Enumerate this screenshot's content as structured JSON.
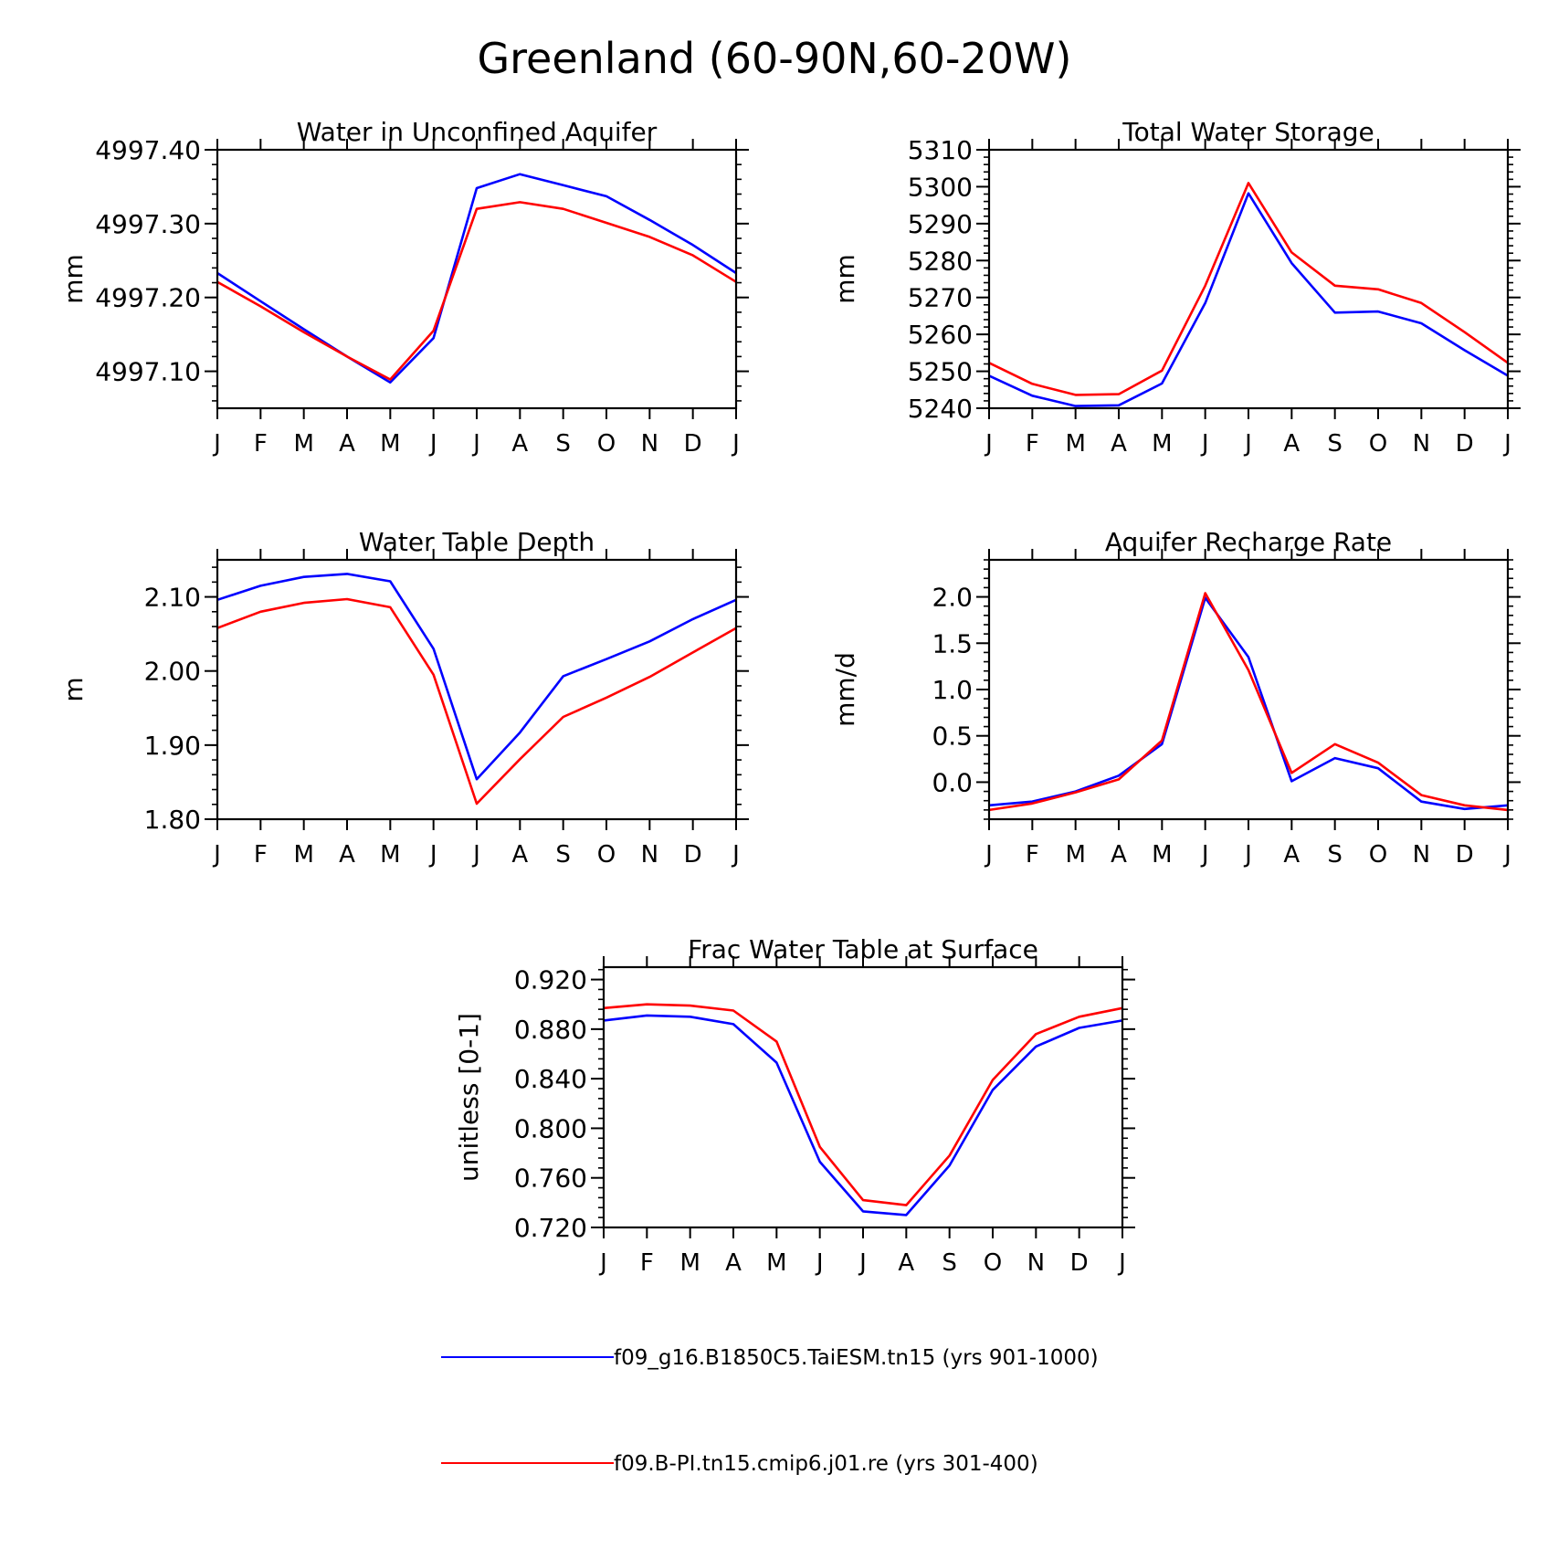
{
  "figure": {
    "title": "Greenland (60-90N,60-20W)"
  },
  "colors": {
    "series1": "#0000ff",
    "series2": "#ff0000",
    "axes": "#000000"
  },
  "legend": {
    "placement": "bottom-center",
    "entries": [
      {
        "label": "f09_g16.B1850C5.TaiESM.tn15 (yrs 901-1000)",
        "color": "#0000ff"
      },
      {
        "label": "f09.B-PI.tn15.cmip6.j01.re (yrs 301-400)",
        "color": "#ff0000"
      }
    ]
  },
  "chart_data": [
    {
      "type": "line",
      "title": "Water in Unconfined Aquifer",
      "ylabel": "mm",
      "xlabel": "",
      "categories": [
        "J",
        "F",
        "M",
        "A",
        "M",
        "J",
        "J",
        "A",
        "S",
        "O",
        "N",
        "D",
        "J"
      ],
      "ylim": [
        4997.05,
        4997.4
      ],
      "yticks": [
        4997.1,
        4997.2,
        4997.3,
        4997.4
      ],
      "ytick_labels": [
        "4997.10",
        "4997.20",
        "4997.30",
        "4997.40"
      ],
      "yminor": 0.02,
      "grid": false,
      "series": [
        {
          "name": "f09_g16.B1850C5.TaiESM.tn15 (yrs 901-1000)",
          "color": "#0000ff",
          "values": [
            4997.233,
            4997.195,
            4997.157,
            4997.12,
            4997.085,
            4997.145,
            4997.348,
            4997.367,
            4997.352,
            4997.337,
            4997.305,
            4997.271,
            4997.233
          ]
        },
        {
          "name": "f09.B-PI.tn15.cmip6.j01.re (yrs 301-400)",
          "color": "#ff0000",
          "values": [
            4997.221,
            4997.188,
            4997.153,
            4997.12,
            4997.089,
            4997.155,
            4997.32,
            4997.329,
            4997.32,
            4997.301,
            4997.282,
            4997.257,
            4997.221
          ]
        }
      ]
    },
    {
      "type": "line",
      "title": "Total Water Storage",
      "ylabel": "mm",
      "xlabel": "",
      "categories": [
        "J",
        "F",
        "M",
        "A",
        "M",
        "J",
        "J",
        "A",
        "S",
        "O",
        "N",
        "D",
        "J"
      ],
      "ylim": [
        5240,
        5310
      ],
      "yticks": [
        5240,
        5250,
        5260,
        5270,
        5280,
        5290,
        5300,
        5310
      ],
      "ytick_labels": [
        "5240",
        "5250",
        "5260",
        "5270",
        "5280",
        "5290",
        "5300",
        "5310"
      ],
      "yminor": 2,
      "grid": false,
      "series": [
        {
          "name": "f09_g16.B1850C5.TaiESM.tn15 (yrs 901-1000)",
          "color": "#0000ff",
          "values": [
            5248.8,
            5243.4,
            5240.6,
            5240.8,
            5246.7,
            5268.5,
            5298.2,
            5279.3,
            5265.9,
            5266.2,
            5263.0,
            5255.7,
            5248.8
          ]
        },
        {
          "name": "f09.B-PI.tn15.cmip6.j01.re (yrs 301-400)",
          "color": "#ff0000",
          "values": [
            5252.3,
            5246.6,
            5243.6,
            5243.8,
            5250.2,
            5273.2,
            5301.0,
            5282.2,
            5273.2,
            5272.2,
            5268.5,
            5260.6,
            5252.3
          ]
        }
      ]
    },
    {
      "type": "line",
      "title": "Water Table Depth",
      "ylabel": "m",
      "xlabel": "",
      "categories": [
        "J",
        "F",
        "M",
        "A",
        "M",
        "J",
        "J",
        "A",
        "S",
        "O",
        "N",
        "D",
        "J"
      ],
      "ylim": [
        1.8,
        2.15
      ],
      "yticks": [
        1.8,
        1.9,
        2.0,
        2.1
      ],
      "ytick_labels": [
        "1.80",
        "1.90",
        "2.00",
        "2.10"
      ],
      "yminor": 0.02,
      "grid": false,
      "series": [
        {
          "name": "f09_g16.B1850C5.TaiESM.tn15 (yrs 901-1000)",
          "color": "#0000ff",
          "values": [
            2.096,
            2.115,
            2.127,
            2.131,
            2.121,
            2.03,
            1.854,
            1.917,
            1.993,
            2.016,
            2.04,
            2.07,
            2.096
          ]
        },
        {
          "name": "f09.B-PI.tn15.cmip6.j01.re (yrs 301-400)",
          "color": "#ff0000",
          "values": [
            2.058,
            2.08,
            2.092,
            2.097,
            2.086,
            1.995,
            1.821,
            1.881,
            1.938,
            1.964,
            1.992,
            2.025,
            2.058
          ]
        }
      ]
    },
    {
      "type": "line",
      "title": "Aquifer Recharge Rate",
      "ylabel": "mm/d",
      "xlabel": "",
      "categories": [
        "J",
        "F",
        "M",
        "A",
        "M",
        "J",
        "J",
        "A",
        "S",
        "O",
        "N",
        "D",
        "J"
      ],
      "ylim": [
        -0.4,
        2.4
      ],
      "yticks": [
        0.0,
        0.5,
        1.0,
        1.5,
        2.0
      ],
      "ytick_labels": [
        "0.0",
        "0.5",
        "1.0",
        "1.5",
        "2.0"
      ],
      "yminor": 0.1,
      "grid": false,
      "series": [
        {
          "name": "f09_g16.B1850C5.TaiESM.tn15 (yrs 901-1000)",
          "color": "#0000ff",
          "values": [
            -0.25,
            -0.21,
            -0.1,
            0.07,
            0.41,
            1.99,
            1.35,
            0.01,
            0.26,
            0.15,
            -0.21,
            -0.29,
            -0.25
          ]
        },
        {
          "name": "f09.B-PI.tn15.cmip6.j01.re (yrs 301-400)",
          "color": "#ff0000",
          "values": [
            -0.3,
            -0.23,
            -0.11,
            0.03,
            0.45,
            2.04,
            1.21,
            0.1,
            0.41,
            0.21,
            -0.14,
            -0.25,
            -0.3
          ]
        }
      ]
    },
    {
      "type": "line",
      "title": "Frac Water Table at Surface",
      "ylabel": "unitless [0-1]",
      "xlabel": "",
      "categories": [
        "J",
        "F",
        "M",
        "A",
        "M",
        "J",
        "J",
        "A",
        "S",
        "O",
        "N",
        "D",
        "J"
      ],
      "ylim": [
        0.72,
        0.93
      ],
      "yticks": [
        0.72,
        0.76,
        0.8,
        0.84,
        0.88,
        0.92
      ],
      "ytick_labels": [
        "0.720",
        "0.760",
        "0.800",
        "0.840",
        "0.880",
        "0.920"
      ],
      "yminor": 0.008,
      "grid": false,
      "series": [
        {
          "name": "f09_g16.B1850C5.TaiESM.tn15 (yrs 901-1000)",
          "color": "#0000ff",
          "values": [
            0.887,
            0.891,
            0.89,
            0.884,
            0.853,
            0.773,
            0.733,
            0.73,
            0.77,
            0.831,
            0.866,
            0.881,
            0.887
          ]
        },
        {
          "name": "f09.B-PI.tn15.cmip6.j01.re (yrs 301-400)",
          "color": "#ff0000",
          "values": [
            0.897,
            0.9,
            0.899,
            0.895,
            0.87,
            0.785,
            0.742,
            0.738,
            0.778,
            0.839,
            0.876,
            0.89,
            0.897
          ]
        }
      ]
    }
  ]
}
